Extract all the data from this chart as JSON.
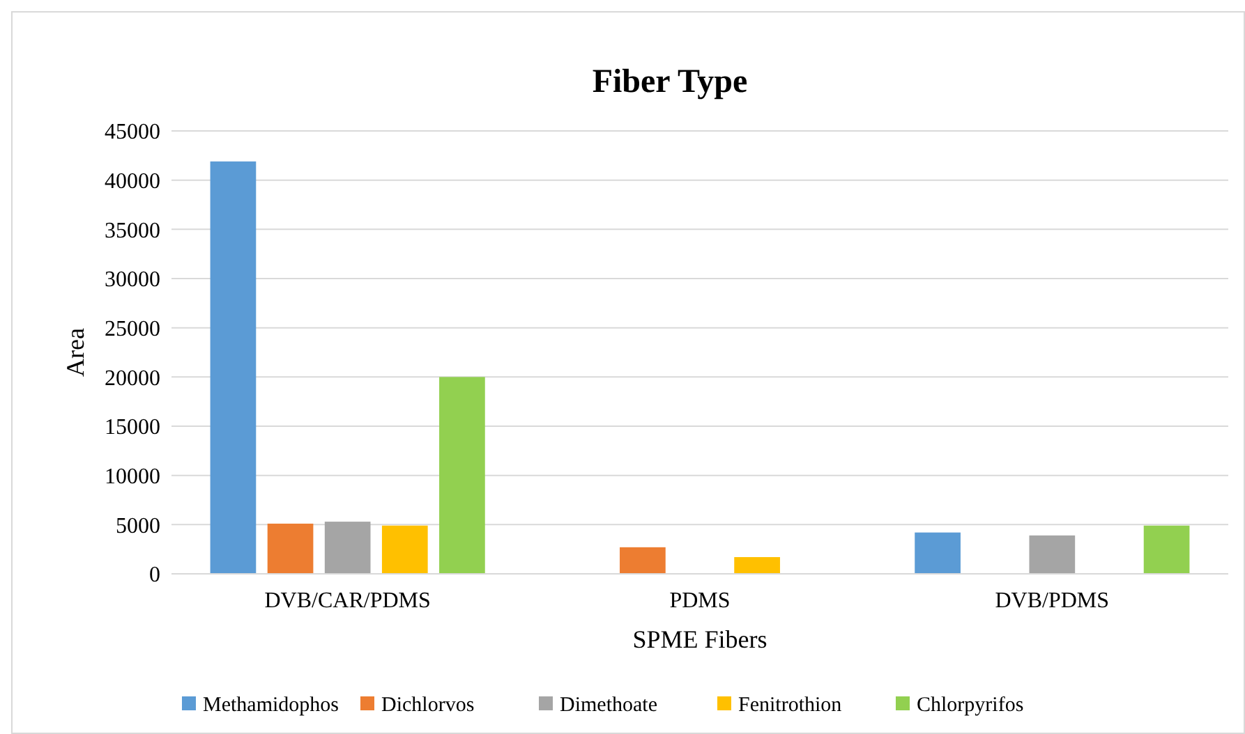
{
  "chart_data": {
    "type": "bar",
    "title": "Fiber Type",
    "xlabel": "SPME Fibers",
    "ylabel": "Area",
    "categories": [
      "DVB/CAR/PDMS",
      "PDMS",
      "DVB/PDMS"
    ],
    "series": [
      {
        "name": "Methamidophos",
        "color": "#5b9bd5",
        "values": [
          41900,
          0,
          4200
        ]
      },
      {
        "name": "Dichlorvos",
        "color": "#ed7d31",
        "values": [
          5100,
          2700,
          0
        ]
      },
      {
        "name": "Dimethoate",
        "color": "#a5a5a5",
        "values": [
          5300,
          0,
          3900
        ]
      },
      {
        "name": "Fenitrothion",
        "color": "#ffc000",
        "values": [
          4900,
          1700,
          0
        ]
      },
      {
        "name": "Chlorpyrifos",
        "color": "#92d050",
        "values": [
          20000,
          0,
          4900
        ]
      }
    ],
    "ylim": [
      0,
      45000
    ],
    "yticks": [
      0,
      5000,
      10000,
      15000,
      20000,
      25000,
      30000,
      35000,
      40000,
      45000
    ],
    "grid": "y",
    "legend": "bottom"
  }
}
